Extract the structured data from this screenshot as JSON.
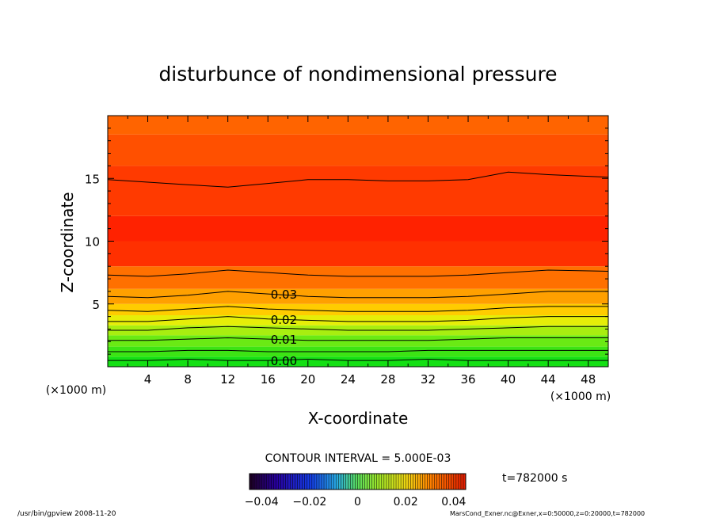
{
  "chart_data": {
    "type": "contour",
    "title": "disturbunce of nondimensional pressure",
    "xlabel": "X-coordinate",
    "ylabel": "Z-coordinate",
    "x_unit": "(×1000 m)",
    "z_unit_left": "(×1000 m)",
    "xlim": [
      0,
      50
    ],
    "ylim": [
      0,
      20
    ],
    "x_ticks": [
      4,
      8,
      12,
      16,
      20,
      24,
      28,
      32,
      36,
      40,
      44,
      48
    ],
    "y_ticks": [
      5,
      10,
      15
    ],
    "contour_lines": [
      {
        "level": 0.0,
        "label": "0.00",
        "z": [
          0.5,
          0.5,
          0.6,
          0.5,
          0.5,
          0.6,
          0.5,
          0.5,
          0.6,
          0.5,
          0.5,
          0.5,
          0.5
        ]
      },
      {
        "level": 0.005,
        "label": "",
        "z": [
          1.2,
          1.2,
          1.3,
          1.3,
          1.2,
          1.2,
          1.2,
          1.2,
          1.3,
          1.3,
          1.3,
          1.3,
          1.3
        ]
      },
      {
        "level": 0.01,
        "label": "0.01",
        "z": [
          2.1,
          2.1,
          2.2,
          2.3,
          2.2,
          2.1,
          2.1,
          2.1,
          2.1,
          2.2,
          2.3,
          2.3,
          2.3
        ]
      },
      {
        "level": 0.015,
        "label": "",
        "z": [
          2.9,
          2.9,
          3.1,
          3.2,
          3.1,
          3.0,
          2.9,
          2.9,
          2.9,
          3.0,
          3.1,
          3.2,
          3.2
        ]
      },
      {
        "level": 0.02,
        "label": "0.02",
        "z": [
          3.6,
          3.6,
          3.8,
          4.0,
          3.8,
          3.7,
          3.6,
          3.6,
          3.6,
          3.7,
          3.9,
          4.0,
          4.0
        ]
      },
      {
        "level": 0.025,
        "label": "",
        "z": [
          4.5,
          4.4,
          4.6,
          4.8,
          4.6,
          4.5,
          4.4,
          4.4,
          4.4,
          4.5,
          4.7,
          4.8,
          4.8
        ]
      },
      {
        "level": 0.03,
        "label": "0.03",
        "z": [
          5.6,
          5.5,
          5.7,
          6.0,
          5.8,
          5.6,
          5.5,
          5.5,
          5.5,
          5.6,
          5.8,
          6.0,
          6.0
        ]
      },
      {
        "level": 0.035,
        "label": "",
        "z": [
          7.3,
          7.2,
          7.4,
          7.7,
          7.5,
          7.3,
          7.2,
          7.2,
          7.2,
          7.3,
          7.5,
          7.7,
          7.6
        ]
      },
      {
        "level": 0.035,
        "label": "",
        "z": [
          14.9,
          14.7,
          14.5,
          14.3,
          14.6,
          14.9,
          14.9,
          14.8,
          14.8,
          14.9,
          15.5,
          15.3,
          15.1
        ]
      }
    ],
    "contour_x": [
      0,
      4,
      8,
      12,
      16,
      20,
      24,
      28,
      32,
      36,
      40,
      44,
      50
    ],
    "contour_interval_text": "CONTOUR INTERVAL = 5.000E-03",
    "time_text": "t=782000 s",
    "colorbar": {
      "ticks": [
        "−0.04",
        "−0.02",
        "0",
        "0.02",
        "0.04"
      ],
      "tick_values": [
        -0.04,
        -0.02,
        0,
        0.02,
        0.04
      ],
      "range": [
        -0.045,
        0.045
      ]
    },
    "bands": [
      {
        "z": 0,
        "color": "#14e014"
      },
      {
        "z": 0.8,
        "color": "#3ce414"
      },
      {
        "z": 1.6,
        "color": "#6aea14"
      },
      {
        "z": 2.5,
        "color": "#a8ee10"
      },
      {
        "z": 3.3,
        "color": "#e6ee08"
      },
      {
        "z": 4.1,
        "color": "#ffcc00"
      },
      {
        "z": 5.0,
        "color": "#ffa000"
      },
      {
        "z": 6.2,
        "color": "#ff7000"
      },
      {
        "z": 8.0,
        "color": "#ff3000"
      },
      {
        "z": 10.0,
        "color": "#ff2200"
      },
      {
        "z": 12.0,
        "color": "#ff3a00"
      },
      {
        "z": 16.0,
        "color": "#ff5000"
      },
      {
        "z": 18.5,
        "color": "#ff6400"
      }
    ],
    "grid": false,
    "legend": "bottom-center"
  },
  "footer": {
    "left": "/usr/bin/gpview   2008-11-20",
    "right": "MarsCond_Exner.nc@Exner,x=0:50000,z=0:20000,t=782000"
  }
}
